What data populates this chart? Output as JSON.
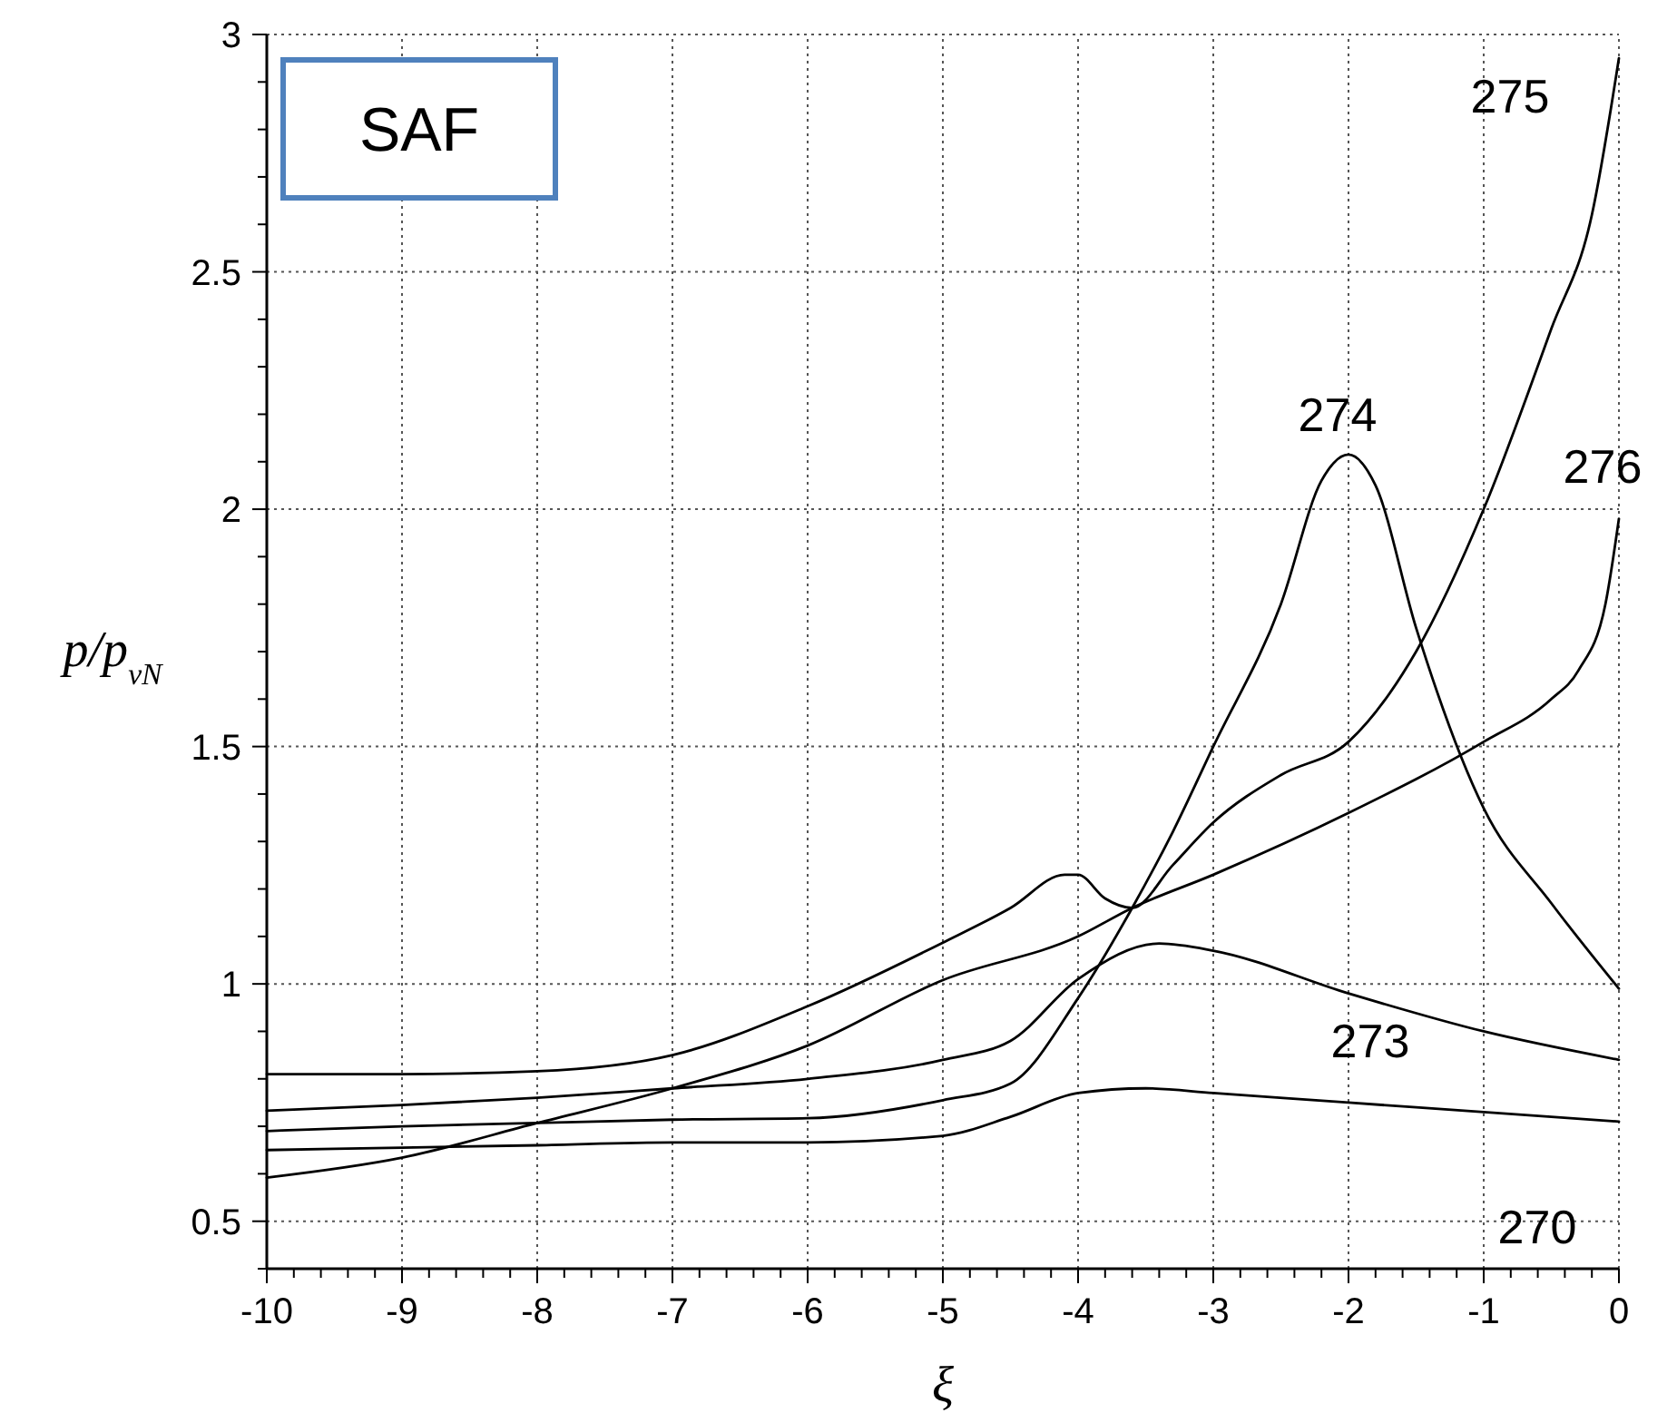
{
  "chart_data": {
    "type": "line",
    "xlabel": "ξ",
    "ylabel": "p/p$_{vN}$",
    "xlim": [
      -10,
      0
    ],
    "ylim": [
      0.4,
      3
    ],
    "grid": true,
    "legend": false,
    "marker": "none",
    "line_style": "solid",
    "xticks": [
      -10,
      {
        "value": -9.8,
        "label": null
      },
      {
        "value": -9.6,
        "label": null
      },
      {
        "value": -9.4,
        "label": null
      },
      {
        "value": -9.2,
        "label": null
      },
      -9,
      {
        "value": -8.8,
        "label": null
      },
      {
        "value": -8.6,
        "label": null
      },
      {
        "value": -8.4,
        "label": null
      },
      {
        "value": -8.2,
        "label": null
      },
      -8,
      {
        "value": -7.8,
        "label": null
      },
      {
        "value": -7.6,
        "label": null
      },
      {
        "value": -7.4,
        "label": null
      },
      {
        "value": -7.2,
        "label": null
      },
      -7,
      {
        "value": -6.8,
        "label": null
      },
      {
        "value": -6.6,
        "label": null
      },
      {
        "value": -6.4,
        "label": null
      },
      {
        "value": -6.2,
        "label": null
      },
      -6,
      {
        "value": -5.8,
        "label": null
      },
      {
        "value": -5.6,
        "label": null
      },
      {
        "value": -5.4,
        "label": null
      },
      {
        "value": -5.2,
        "label": null
      },
      -5,
      {
        "value": -4.8,
        "label": null
      },
      {
        "value": -4.6,
        "label": null
      },
      {
        "value": -4.4,
        "label": null
      },
      {
        "value": -4.2,
        "label": null
      },
      -4,
      {
        "value": -3.8,
        "label": null
      },
      {
        "value": -3.6,
        "label": null
      },
      {
        "value": -3.4,
        "label": null
      },
      {
        "value": -3.2,
        "label": null
      },
      -3,
      {
        "value": -2.8,
        "label": null
      },
      {
        "value": -2.6,
        "label": null
      },
      {
        "value": -2.4,
        "label": null
      },
      {
        "value": -2.2,
        "label": null
      },
      -2,
      {
        "value": -1.8,
        "label": null
      },
      {
        "value": -1.6,
        "label": null
      },
      {
        "value": -1.4,
        "label": null
      },
      {
        "value": -1.2,
        "label": null
      },
      -1,
      {
        "value": -0.8,
        "label": null
      },
      {
        "value": -0.6,
        "label": null
      },
      {
        "value": -0.4,
        "label": null
      },
      {
        "value": -0.2,
        "label": null
      },
      0
    ],
    "yticks": [
      {
        "value": 0.4,
        "label": null
      },
      0.5,
      {
        "value": 0.6,
        "label": null
      },
      {
        "value": 0.7,
        "label": null
      },
      {
        "value": 0.8,
        "label": null
      },
      {
        "value": 0.9,
        "label": null
      },
      1,
      {
        "value": 1.1,
        "label": null
      },
      {
        "value": 1.2,
        "label": null
      },
      {
        "value": 1.3,
        "label": null
      },
      {
        "value": 1.4,
        "label": null
      },
      1.5,
      {
        "value": 1.6,
        "label": null
      },
      {
        "value": 1.7,
        "label": null
      },
      {
        "value": 1.8,
        "label": null
      },
      {
        "value": 1.9,
        "label": null
      },
      2,
      {
        "value": 2.1,
        "label": null
      },
      {
        "value": 2.2,
        "label": null
      },
      {
        "value": 2.3,
        "label": null
      },
      {
        "value": 2.4,
        "label": null
      },
      2.5,
      {
        "value": 2.6,
        "label": null
      },
      {
        "value": 2.7,
        "label": null
      },
      {
        "value": 2.8,
        "label": null
      },
      {
        "value": 2.9,
        "label": null
      },
      3
    ],
    "series": [
      {
        "name": "270",
        "color": "#000000",
        "x": [
          -10,
          -9,
          -8,
          -7,
          -6,
          -5,
          -4.5,
          -4,
          -3.5,
          -3,
          -2,
          -1,
          0
        ],
        "values": [
          0.65,
          0.655,
          0.66,
          0.666,
          0.666,
          0.68,
          0.72,
          0.77,
          0.78,
          0.77,
          0.75,
          0.73,
          0.71
        ]
      },
      {
        "name": "273",
        "color": "#000000",
        "x": [
          -10,
          -9,
          -8,
          -7,
          -6,
          -5,
          -4.5,
          -4,
          -3.4,
          -3,
          -2,
          -1,
          0
        ],
        "values": [
          0.733,
          0.745,
          0.76,
          0.78,
          0.8,
          0.84,
          0.88,
          1.01,
          1.085,
          1.07,
          0.98,
          0.9,
          0.84
        ]
      },
      {
        "name": "274",
        "color": "#000000",
        "x": [
          -10,
          -9,
          -8,
          -7,
          -6,
          -5,
          -4.5,
          -4,
          -3.6,
          -3.3,
          -3,
          -2.5,
          -2.2,
          -2,
          -1.8,
          -1.5,
          -1,
          -0.5,
          0
        ],
        "values": [
          0.69,
          0.7,
          0.707,
          0.714,
          0.717,
          0.755,
          0.79,
          0.97,
          1.16,
          1.32,
          1.5,
          1.8,
          2.06,
          2.115,
          2.05,
          1.75,
          1.37,
          1.17,
          0.99
        ]
      },
      {
        "name": "275",
        "color": "#000000",
        "x": [
          -10,
          -9,
          -8,
          -7,
          -6,
          -5,
          -4.5,
          -4.1,
          -4,
          -3.8,
          -3.6,
          -3.3,
          -3,
          -2.5,
          -2,
          -1.5,
          -1,
          -0.5,
          -0.2,
          0
        ],
        "values": [
          0.81,
          0.81,
          0.816,
          0.85,
          0.953,
          1.087,
          1.16,
          1.23,
          1.23,
          1.18,
          1.16,
          1.25,
          1.34,
          1.44,
          1.51,
          1.7,
          2.0,
          2.38,
          2.62,
          2.95
        ]
      },
      {
        "name": "276",
        "color": "#000000",
        "x": [
          -10,
          -9,
          -8,
          -7,
          -6,
          -5,
          -4,
          -3.6,
          -3,
          -2,
          -1,
          -0.5,
          -0.3,
          -0.1,
          0
        ],
        "values": [
          0.592,
          0.634,
          0.707,
          0.78,
          0.87,
          1.008,
          1.1,
          1.16,
          1.23,
          1.36,
          1.51,
          1.6,
          1.66,
          1.8,
          1.98
        ]
      }
    ],
    "annotations": [
      "SAF"
    ]
  }
}
